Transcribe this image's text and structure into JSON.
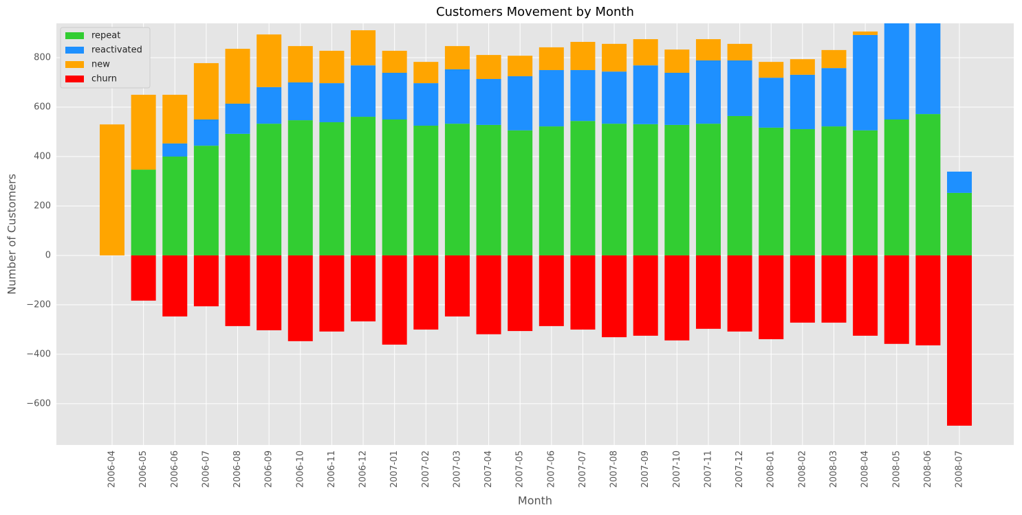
{
  "chart_data": {
    "type": "bar",
    "stacked": true,
    "title": "Customers Movement by Month",
    "x_label": "Month",
    "y_label": "Number of Customers",
    "categories": [
      "2006-04",
      "2006-05",
      "2006-06",
      "2006-07",
      "2006-08",
      "2006-09",
      "2006-10",
      "2006-11",
      "2006-12",
      "2007-01",
      "2007-02",
      "2007-03",
      "2007-04",
      "2007-05",
      "2007-06",
      "2007-07",
      "2007-08",
      "2007-09",
      "2007-10",
      "2007-11",
      "2007-12",
      "2008-01",
      "2008-02",
      "2008-03",
      "2008-04",
      "2008-05",
      "2008-06",
      "2008-07"
    ],
    "series": [
      {
        "name": "repeat",
        "color": "#32cd32",
        "values": [
          0,
          347,
          400,
          444,
          492,
          533,
          547,
          539,
          561,
          550,
          525,
          533,
          528,
          506,
          522,
          544,
          533,
          531,
          528,
          533,
          564,
          517,
          511,
          522,
          506,
          550,
          572,
          253
        ]
      },
      {
        "name": "reactivated",
        "color": "#1e90ff",
        "values": [
          0,
          0,
          53,
          106,
          122,
          148,
          153,
          158,
          208,
          189,
          172,
          220,
          186,
          219,
          228,
          206,
          211,
          238,
          211,
          256,
          225,
          202,
          220,
          236,
          386,
          400,
          380,
          86
        ]
      },
      {
        "name": "new",
        "color": "#ffa500",
        "values": [
          530,
          303,
          197,
          228,
          222,
          213,
          147,
          131,
          142,
          89,
          86,
          94,
          97,
          83,
          92,
          114,
          112,
          106,
          94,
          86,
          67,
          64,
          63,
          73,
          14,
          20,
          20,
          0
        ]
      },
      {
        "name": "churn",
        "color": "#ff0000",
        "values": [
          0,
          -183,
          -247,
          -206,
          -286,
          -303,
          -347,
          -308,
          -267,
          -361,
          -300,
          -247,
          -319,
          -306,
          -286,
          -300,
          -331,
          -325,
          -344,
          -297,
          -308,
          -339,
          -272,
          -272,
          -325,
          -358,
          -364,
          -689
        ]
      }
    ],
    "ylim": [
      -767,
      939
    ],
    "yticks": [
      {
        "value": -600,
        "label": "−600"
      },
      {
        "value": -400,
        "label": "−400"
      },
      {
        "value": -200,
        "label": "−200"
      },
      0,
      200,
      400,
      600,
      800
    ],
    "grid": true,
    "legend": "upper left"
  }
}
